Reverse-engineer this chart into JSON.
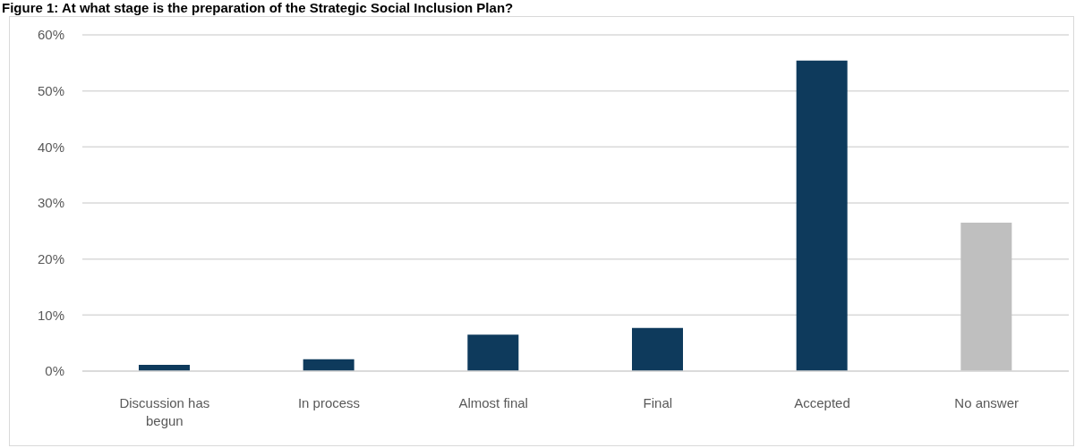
{
  "chart_data": {
    "type": "bar",
    "title": "Figure 1: At what stage is the preparation of the Strategic Social Inclusion Plan?",
    "categories": [
      "Discussion has begun",
      "In process",
      "Almost final",
      "Final",
      "Accepted",
      "No answer"
    ],
    "values": [
      1.1,
      2.1,
      6.5,
      7.7,
      55.4,
      26.5
    ],
    "colors": [
      "#0e3a5c",
      "#0e3a5c",
      "#0e3a5c",
      "#0e3a5c",
      "#0e3a5c",
      "#bfbfbf"
    ],
    "ylim": [
      0,
      60
    ],
    "yticks": [
      {
        "value": 0,
        "label": "0%"
      },
      {
        "value": 10,
        "label": "10%"
      },
      {
        "value": 20,
        "label": "20%"
      },
      {
        "value": 30,
        "label": "30%"
      },
      {
        "value": 40,
        "label": "40%"
      },
      {
        "value": 50,
        "label": "50%"
      },
      {
        "value": 60,
        "label": "60%"
      }
    ],
    "grid": "y"
  }
}
